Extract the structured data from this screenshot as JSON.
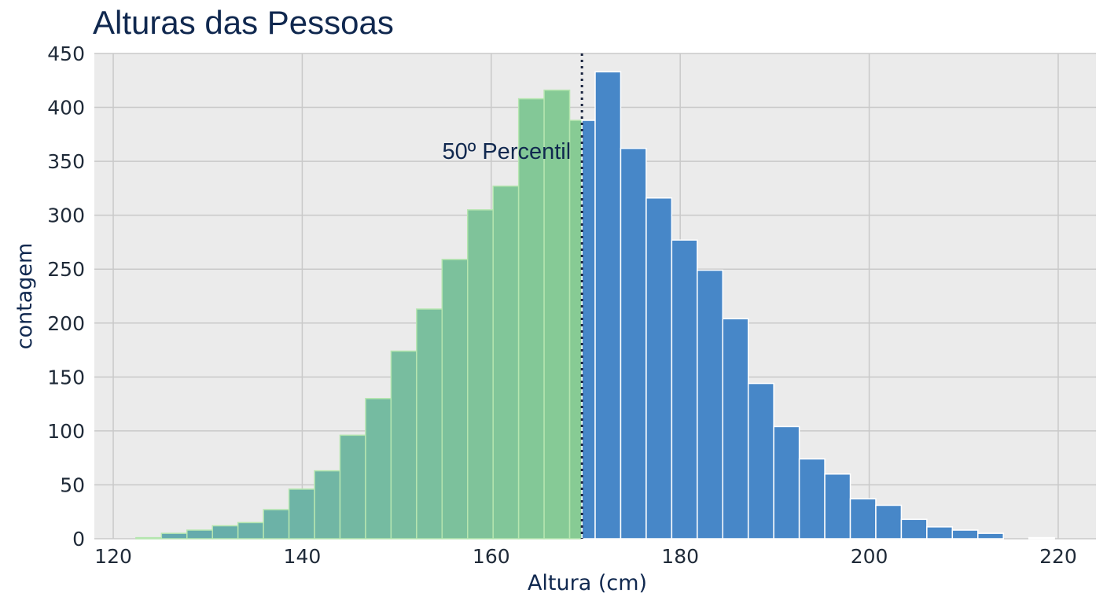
{
  "chart_data": {
    "type": "bar",
    "title": "Alturas das Pessoas",
    "xlabel": "Altura (cm)",
    "ylabel": "contagem",
    "xlim": [
      118,
      224
    ],
    "ylim": [
      0,
      450
    ],
    "xticks": [
      120,
      140,
      160,
      180,
      200,
      220
    ],
    "yticks": [
      0,
      50,
      100,
      150,
      200,
      250,
      300,
      350,
      400,
      450
    ],
    "grid": true,
    "bin_edges": [
      122.4,
      125.1,
      127.8,
      130.5,
      133.2,
      135.9,
      138.6,
      141.3,
      144.0,
      146.7,
      149.4,
      152.1,
      154.8,
      157.5,
      160.2,
      162.9,
      165.6,
      168.3,
      171.0,
      173.7,
      176.4,
      179.1,
      181.8,
      184.5,
      187.2,
      189.9,
      192.6,
      195.3,
      198.0,
      200.7,
      203.4,
      206.1,
      208.8,
      211.5,
      214.2,
      216.9,
      219.6,
      222.3
    ],
    "counts": [
      1,
      5,
      8,
      12,
      15,
      27,
      46,
      63,
      96,
      130,
      174,
      213,
      259,
      305,
      327,
      408,
      416,
      388,
      433,
      362,
      316,
      277,
      249,
      204,
      144,
      104,
      74,
      60,
      37,
      31,
      18,
      11,
      8,
      5,
      0,
      1,
      0
    ],
    "percentile": {
      "label": "50º Percentil",
      "value": 169.6
    },
    "colors": {
      "below_percentile": [
        "#5fa6b0",
        "#88cc94"
      ],
      "above_percentile": "#4787c8",
      "edge_below": "#b6e6b0",
      "edge_above": "#ffffff",
      "background": "#ebebeb",
      "grid": "#c9c9c9",
      "percentile_line": "#1b2540"
    }
  }
}
